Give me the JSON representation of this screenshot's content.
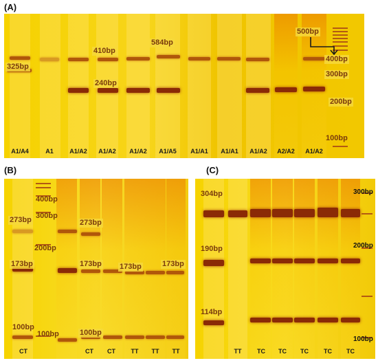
{
  "panels": {
    "A": {
      "label": "(A)",
      "size_labels": [
        "325bp",
        "410bp",
        "240bp",
        "584bp",
        "500bp",
        "400bp",
        "300bp",
        "200bp",
        "100bp"
      ],
      "lanes": [
        "A1/A4",
        "A1",
        "A1/A2",
        "A1/A2",
        "A1/A2",
        "A1/A5",
        "A1/A1",
        "A1/A1",
        "A1/A2",
        "A2/A2",
        "A1/A2"
      ]
    },
    "B": {
      "label": "(B)",
      "size_labels": [
        "400bp",
        "300bp",
        "273bp",
        "200bp",
        "173bp",
        "100bp",
        "100bp",
        "273bp",
        "173bp",
        "173bp",
        "173bp",
        "100bp"
      ],
      "lanes": [
        "CT",
        "CT",
        "CT",
        "TT",
        "TT",
        "TT"
      ]
    },
    "C": {
      "label": "(C)",
      "size_labels": [
        "304bp",
        "190bp",
        "114bp",
        "300bp",
        "200bp",
        "100bp"
      ],
      "lanes": [
        "TT",
        "TC",
        "TC",
        "TC",
        "TC",
        "TC"
      ]
    }
  }
}
